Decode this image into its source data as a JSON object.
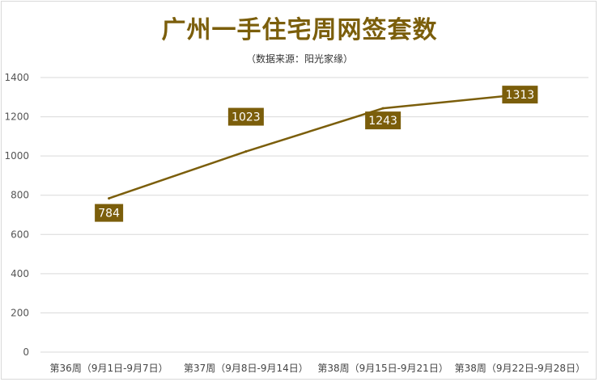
{
  "chart_data": {
    "type": "line",
    "title": "广州一手住宅周网签套数",
    "subtitle": "（数据来源：阳光家缘）",
    "categories": [
      "第36周（9月1日-9月7日）",
      "第37周（9月8日-9月14日）",
      "第38周（9月15日-9月21日）",
      "第38周（9月22日-9月28日）"
    ],
    "values": [
      784,
      1023,
      1243,
      1313
    ],
    "data_labels": [
      "784",
      "1023",
      "1243",
      "1313"
    ],
    "ylim": [
      0,
      1400
    ],
    "yticks": [
      "0",
      "200",
      "400",
      "600",
      "800",
      "1000",
      "1200",
      "1400"
    ],
    "grid": true,
    "legend": "none",
    "colors": {
      "line": "#7b5e0b",
      "label_bg": "#7b5e0b",
      "title": "#7b5e0b",
      "grid": "#d9d9d9"
    }
  }
}
